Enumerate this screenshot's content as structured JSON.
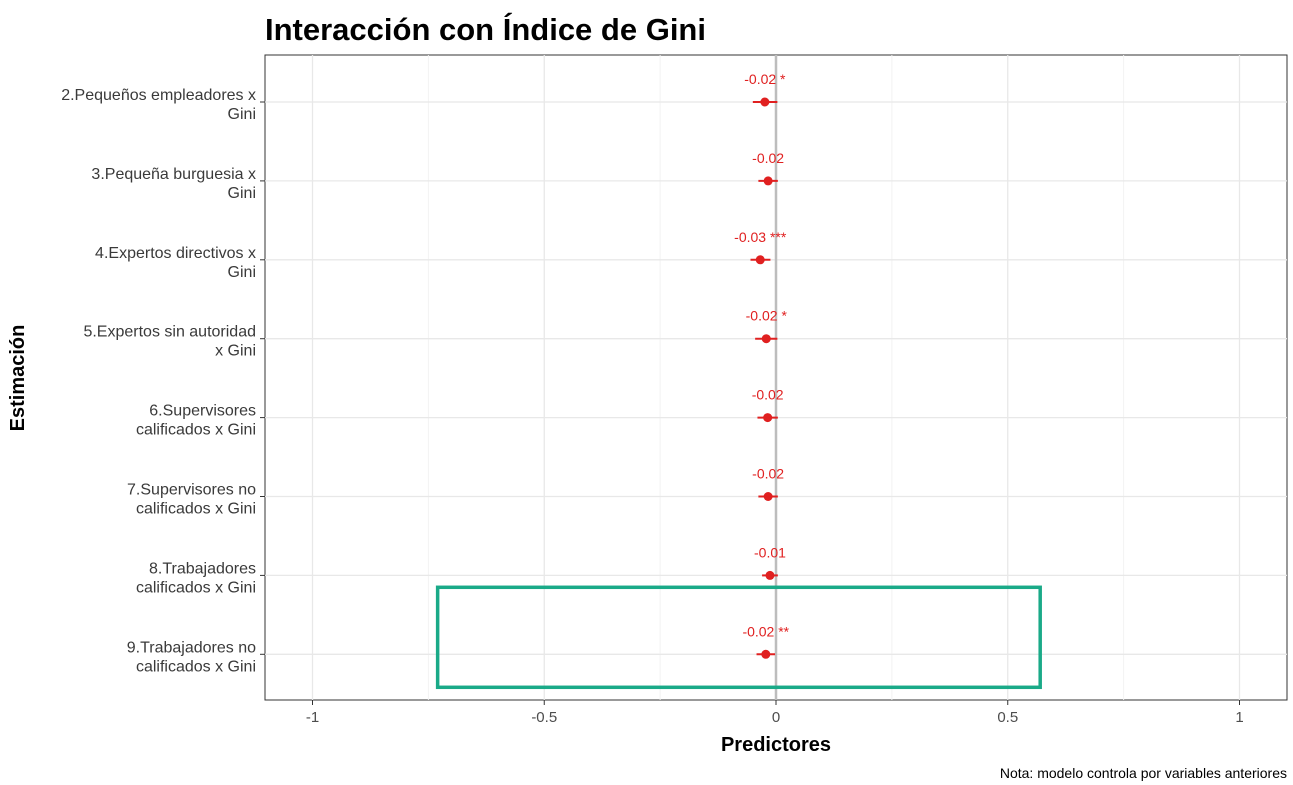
{
  "chart_data": {
    "type": "scatter",
    "title": "Interacción con Índice de Gini",
    "xlabel": "Predictores",
    "ylabel": "Estimación",
    "note": "Nota: modelo controla por variables anteriores",
    "xlim": [
      -1.1,
      1.1
    ],
    "x_ticks": [
      -1,
      -0.5,
      0,
      0.5,
      1
    ],
    "x_tick_labels": [
      "-1",
      "-0.5",
      "0",
      "0.5",
      "1"
    ],
    "grid": true,
    "reference_line": 0,
    "point_color": "#e02020",
    "highlight_color": "#1aaa88",
    "categories": [
      [
        "2.Pequeños empleadores x",
        "Gini"
      ],
      [
        "3.Pequeña burguesia x",
        "Gini"
      ],
      [
        "4.Expertos directivos x",
        "Gini"
      ],
      [
        "5.Expertos sin autoridad",
        "x Gini"
      ],
      [
        "6.Supervisores",
        "calificados x Gini"
      ],
      [
        "7.Supervisores no",
        "calificados x Gini"
      ],
      [
        "8.Trabajadores",
        "calificados x Gini"
      ],
      [
        "9.Trabajadores no",
        "calificados x Gini"
      ]
    ],
    "estimates": [
      -0.024,
      -0.017,
      -0.034,
      -0.021,
      -0.018,
      -0.017,
      -0.013,
      -0.022
    ],
    "ci_low": [
      -0.05,
      -0.038,
      -0.055,
      -0.045,
      -0.04,
      -0.038,
      -0.03,
      -0.042
    ],
    "ci_high": [
      0.003,
      0.004,
      -0.012,
      0.003,
      0.004,
      0.004,
      0.004,
      -0.002
    ],
    "labels": [
      "-0.02 *",
      "-0.02",
      "-0.03 ***",
      "-0.02 *",
      "-0.02",
      "-0.02",
      "-0.01",
      "-0.02 **"
    ],
    "highlight": {
      "category_index": 7,
      "x_range": [
        -0.73,
        0.57
      ]
    }
  }
}
